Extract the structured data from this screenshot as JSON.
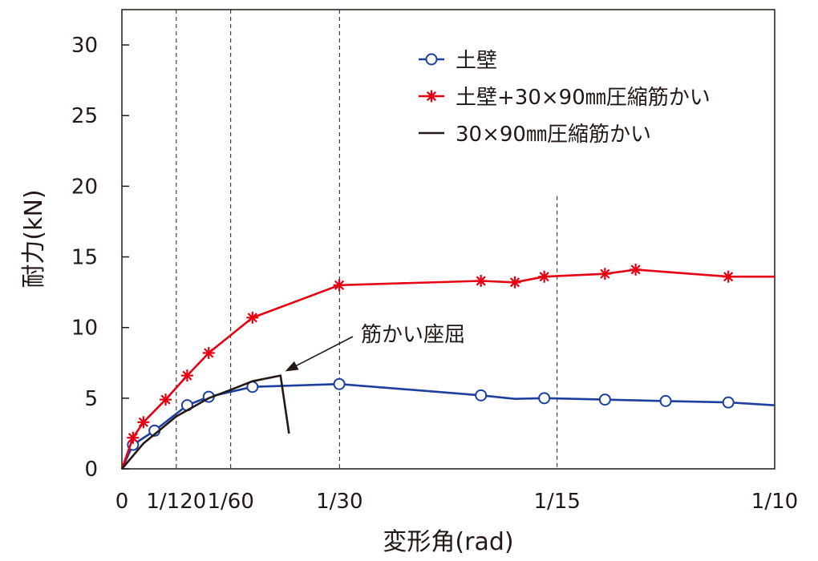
{
  "chart_data": {
    "type": "line",
    "xlabel": "変形角(rad)",
    "ylabel": "耐力(kN)",
    "xlim": [
      0,
      0.1
    ],
    "ylim": [
      0,
      32.5
    ],
    "y_ticks": [
      0,
      5,
      10,
      15,
      20,
      25,
      30
    ],
    "x_ticks": [
      {
        "value": 0,
        "label": "0"
      },
      {
        "value": 0.008333,
        "label": "1/120"
      },
      {
        "value": 0.016667,
        "label": "1/60"
      },
      {
        "value": 0.033333,
        "label": "1/30"
      },
      {
        "value": 0.066667,
        "label": "1/15"
      },
      {
        "value": 0.1,
        "label": "1/10"
      }
    ],
    "reference_lines_x": [
      0.008333,
      0.016667,
      0.033333,
      0.066667
    ],
    "legend_position": "top-right",
    "series": [
      {
        "name": "土壁",
        "color": "#1d3f9e",
        "marker": "circle",
        "x": [
          0,
          0.0017,
          0.005,
          0.01,
          0.0133,
          0.02,
          0.0333,
          0.055,
          0.0602,
          0.0647,
          0.074,
          0.0833,
          0.0929,
          0.1
        ],
        "y": [
          0,
          1.7,
          2.7,
          4.5,
          5.1,
          5.8,
          6.0,
          5.2,
          4.95,
          5.0,
          4.9,
          4.8,
          4.7,
          4.5
        ],
        "marker_indices": [
          1,
          2,
          3,
          4,
          5,
          6,
          7,
          9,
          10,
          11,
          12
        ]
      },
      {
        "name": "土壁+30×90㎜圧縮筋かい",
        "color": "#e60012",
        "marker": "asterisk",
        "x": [
          0,
          0.0017,
          0.0033,
          0.0067,
          0.01,
          0.0133,
          0.02,
          0.0333,
          0.055,
          0.0602,
          0.0647,
          0.074,
          0.0787,
          0.0929,
          0.1
        ],
        "y": [
          0,
          2.2,
          3.3,
          4.9,
          6.6,
          8.2,
          10.7,
          13.0,
          13.3,
          13.2,
          13.6,
          13.8,
          14.1,
          13.6,
          13.6
        ],
        "marker_indices": [
          1,
          2,
          3,
          4,
          5,
          6,
          7,
          8,
          9,
          10,
          11,
          12,
          13
        ]
      },
      {
        "name": "30×90㎜圧縮筋かい",
        "color": "#231815",
        "marker": "none",
        "x": [
          0,
          0.0033,
          0.0083,
          0.0133,
          0.0167,
          0.02,
          0.0243,
          0.0243,
          0.0256
        ],
        "y": [
          0,
          1.8,
          3.7,
          5.0,
          5.6,
          6.2,
          6.6,
          6.6,
          2.5
        ]
      }
    ],
    "annotations": [
      {
        "text": "筋かい座屈",
        "arrow_to": [
          0.025,
          6.9
        ]
      }
    ]
  }
}
